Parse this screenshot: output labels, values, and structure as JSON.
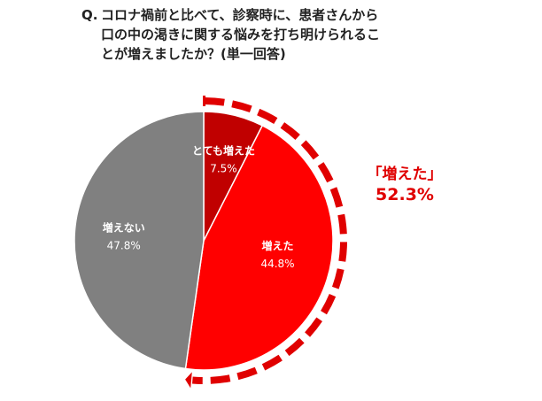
{
  "question": {
    "prefix": "Q.",
    "line1": "コロナ禍前と比べて、診察時に、患者さんから",
    "line2": "口の中の渇きに関する悩みを打ち明けられるこ",
    "line3": "とが増えましたか？(単一回答)"
  },
  "callout": {
    "label": "「増えた」",
    "value": "52.3%"
  },
  "colors": {
    "dark_red": "#c00000",
    "red": "#ff0000",
    "gray": "#808080",
    "callout": "#e00000"
  },
  "chart_data": {
    "type": "pie",
    "title": "",
    "start_angle": "12 o'clock, clockwise",
    "slices": [
      {
        "label": "とても増えた",
        "value": 7.5,
        "value_label": "7.5%",
        "color": "#c00000"
      },
      {
        "label": "増えた",
        "value": 44.8,
        "value_label": "44.8%",
        "color": "#ff0000"
      },
      {
        "label": "増えない",
        "value": 47.8,
        "value_label": "47.8%",
        "color": "#808080"
      }
    ],
    "highlight": {
      "label": "「増えた」",
      "value_label": "52.3%",
      "covers": [
        "とても増えた",
        "増えた"
      ],
      "style": "dashed red arrow arc"
    }
  }
}
